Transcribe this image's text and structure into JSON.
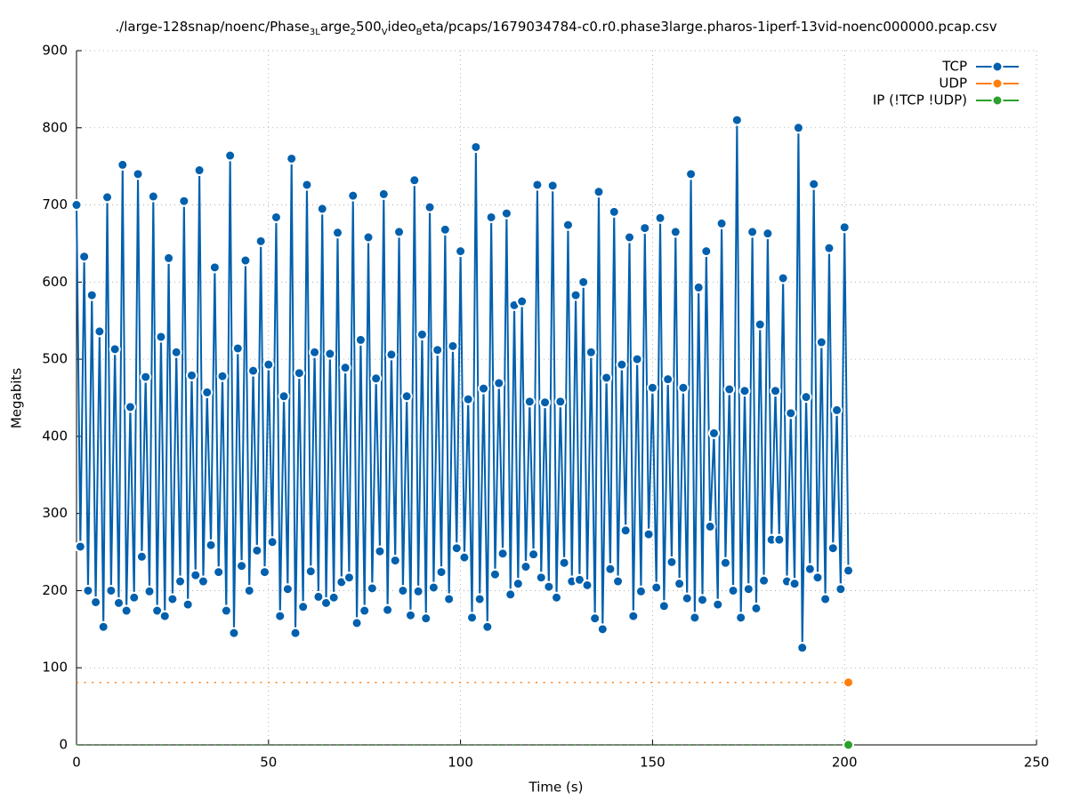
{
  "chart_data": {
    "type": "line",
    "title": [
      {
        "text": "./large-128snap/noenc/Phase"
      },
      {
        "text": "3L",
        "sub": true
      },
      {
        "text": "arge"
      },
      {
        "text": "2",
        "sub": true
      },
      {
        "text": "500"
      },
      {
        "text": "V",
        "sub": true
      },
      {
        "text": "ideo"
      },
      {
        "text": "B",
        "sub": true
      },
      {
        "text": "eta/pcaps/1679034784-c0.r0.phase3large.pharos-1iperf-13vid-noenc000000.pcap.csv"
      }
    ],
    "xlabel": "Time (s)",
    "ylabel": "Megabits",
    "xlim": [
      0,
      250
    ],
    "ylim": [
      0,
      900
    ],
    "xticks": [
      0,
      50,
      100,
      150,
      200,
      250
    ],
    "yticks": [
      0,
      100,
      200,
      300,
      400,
      500,
      600,
      700,
      800,
      900
    ],
    "grid": true,
    "legend": "top-right",
    "x": [
      0,
      1,
      2,
      3,
      4,
      5,
      6,
      7,
      8,
      9,
      10,
      11,
      12,
      13,
      14,
      15,
      16,
      17,
      18,
      19,
      20,
      21,
      22,
      23,
      24,
      25,
      26,
      27,
      28,
      29,
      30,
      31,
      32,
      33,
      34,
      35,
      36,
      37,
      38,
      39,
      40,
      41,
      42,
      43,
      44,
      45,
      46,
      47,
      48,
      49,
      50,
      51,
      52,
      53,
      54,
      55,
      56,
      57,
      58,
      59,
      60,
      61,
      62,
      63,
      64,
      65,
      66,
      67,
      68,
      69,
      70,
      71,
      72,
      73,
      74,
      75,
      76,
      77,
      78,
      79,
      80,
      81,
      82,
      83,
      84,
      85,
      86,
      87,
      88,
      89,
      90,
      91,
      92,
      93,
      94,
      95,
      96,
      97,
      98,
      99,
      100,
      101,
      102,
      103,
      104,
      105,
      106,
      107,
      108,
      109,
      110,
      111,
      112,
      113,
      114,
      115,
      116,
      117,
      118,
      119,
      120,
      121,
      122,
      123,
      124,
      125,
      126,
      127,
      128,
      129,
      130,
      131,
      132,
      133,
      134,
      135,
      136,
      137,
      138,
      139,
      140,
      141,
      142,
      143,
      144,
      145,
      146,
      147,
      148,
      149,
      150,
      151,
      152,
      153,
      154,
      155,
      156,
      157,
      158,
      159,
      160,
      161,
      162,
      163,
      164,
      165,
      166,
      167,
      168,
      169,
      170,
      171,
      172,
      173,
      174,
      175,
      176,
      177,
      178,
      179,
      180,
      181,
      182,
      183,
      184,
      185,
      186,
      187,
      188,
      189,
      190,
      191,
      192,
      193,
      194,
      195,
      196,
      197,
      198,
      199,
      200,
      201
    ],
    "series": [
      {
        "name": "TCP",
        "color": "#0060ad",
        "markers": "all",
        "values": [
          700,
          257,
          633,
          200,
          583,
          185,
          536,
          153,
          710,
          200,
          513,
          184,
          752,
          174,
          438,
          191,
          740,
          244,
          477,
          199,
          711,
          174,
          529,
          167,
          631,
          189,
          509,
          212,
          705,
          182,
          479,
          220,
          745,
          212,
          457,
          259,
          619,
          224,
          478,
          174,
          764,
          145,
          514,
          232,
          628,
          200,
          485,
          252,
          653,
          224,
          493,
          263,
          684,
          167,
          452,
          202,
          760,
          145,
          482,
          179,
          726,
          225,
          509,
          192,
          695,
          184,
          507,
          191,
          664,
          211,
          489,
          217,
          712,
          158,
          525,
          174,
          658,
          203,
          475,
          251,
          714,
          175,
          506,
          239,
          665,
          200,
          452,
          168,
          732,
          199,
          532,
          164,
          697,
          204,
          512,
          224,
          668,
          189,
          517,
          255,
          640,
          243,
          448,
          165,
          775,
          189,
          462,
          153,
          684,
          221,
          469,
          248,
          689,
          195,
          570,
          209,
          575,
          231,
          445,
          247,
          726,
          217,
          444,
          205,
          725,
          191,
          445,
          236,
          674,
          212,
          583,
          214,
          600,
          207,
          509,
          164,
          717,
          150,
          476,
          228,
          691,
          212,
          493,
          278,
          658,
          167,
          500,
          199,
          670,
          273,
          463,
          204,
          683,
          180,
          474,
          237,
          665,
          209,
          463,
          190,
          740,
          165,
          593,
          188,
          640,
          283,
          404,
          182,
          676,
          236,
          461,
          200,
          810,
          165,
          459,
          202,
          665,
          177,
          545,
          213,
          663,
          266,
          459,
          266,
          605,
          212,
          430,
          209,
          800,
          126,
          451,
          228,
          727,
          217,
          522,
          189,
          644,
          255,
          434,
          202,
          671,
          226
        ]
      },
      {
        "name": "UDP",
        "color": "#ff7f0e",
        "markers": "last",
        "values": [
          81,
          81,
          81,
          81,
          81,
          81,
          81,
          81,
          81,
          81,
          81,
          81,
          81,
          81,
          81,
          81,
          81,
          81,
          81,
          81,
          81,
          81,
          81,
          81,
          81,
          81,
          81,
          81,
          81,
          81,
          81,
          81,
          81,
          81,
          81,
          81,
          81,
          81,
          81,
          81,
          81,
          81,
          81,
          81,
          81,
          81,
          81,
          81,
          81,
          81,
          81,
          81,
          81,
          81,
          81,
          81,
          81,
          81,
          81,
          81,
          81,
          81,
          81,
          81,
          81,
          81,
          81,
          81,
          81,
          81,
          81,
          81,
          81,
          81,
          81,
          81,
          81,
          81,
          81,
          81,
          81,
          81,
          81,
          81,
          81,
          81,
          81,
          81,
          81,
          81,
          81,
          81,
          81,
          81,
          81,
          81,
          81,
          81,
          81,
          81,
          81,
          81,
          81,
          81,
          81,
          81,
          81,
          81,
          81,
          81,
          81,
          81,
          81,
          81,
          81,
          81,
          81,
          81,
          81,
          81,
          81,
          81,
          81,
          81,
          81,
          81,
          81,
          81,
          81,
          81,
          81,
          81,
          81,
          81,
          81,
          81,
          81,
          81,
          81,
          81,
          81,
          81,
          81,
          81,
          81,
          81,
          81,
          81,
          81,
          81,
          81,
          81,
          81,
          81,
          81,
          81,
          81,
          81,
          81,
          81,
          81,
          81,
          81,
          81,
          81,
          81,
          81,
          81,
          81,
          81,
          81,
          81,
          81,
          81,
          81,
          81,
          81,
          81,
          81,
          81,
          81,
          81,
          81,
          81,
          81,
          81,
          81,
          81,
          81,
          81,
          81,
          81,
          81,
          81,
          81,
          81,
          81,
          81,
          81,
          81,
          81,
          81
        ]
      },
      {
        "name": "IP (!TCP  !UDP)",
        "color": "#2ca02c",
        "markers": "last",
        "values": [
          0,
          0,
          0,
          0,
          0,
          0,
          0,
          0,
          0,
          0,
          0,
          0,
          0,
          0,
          0,
          0,
          0,
          0,
          0,
          0,
          0,
          0,
          0,
          0,
          0,
          0,
          0,
          0,
          0,
          0,
          0,
          0,
          0,
          0,
          0,
          0,
          0,
          0,
          0,
          0,
          0,
          0,
          0,
          0,
          0,
          0,
          0,
          0,
          0,
          0,
          0,
          0,
          0,
          0,
          0,
          0,
          0,
          0,
          0,
          0,
          0,
          0,
          0,
          0,
          0,
          0,
          0,
          0,
          0,
          0,
          0,
          0,
          0,
          0,
          0,
          0,
          0,
          0,
          0,
          0,
          0,
          0,
          0,
          0,
          0,
          0,
          0,
          0,
          0,
          0,
          0,
          0,
          0,
          0,
          0,
          0,
          0,
          0,
          0,
          0,
          0,
          0,
          0,
          0,
          0,
          0,
          0,
          0,
          0,
          0,
          0,
          0,
          0,
          0,
          0,
          0,
          0,
          0,
          0,
          0,
          0,
          0,
          0,
          0,
          0,
          0,
          0,
          0,
          0,
          0,
          0,
          0,
          0,
          0,
          0,
          0,
          0,
          0,
          0,
          0,
          0,
          0,
          0,
          0,
          0,
          0,
          0,
          0,
          0,
          0,
          0,
          0,
          0,
          0,
          0,
          0,
          0,
          0,
          0,
          0,
          0,
          0,
          0,
          0,
          0,
          0,
          0,
          0,
          0,
          0,
          0,
          0,
          0,
          0,
          0,
          0,
          0,
          0,
          0,
          0,
          0,
          0,
          0,
          0,
          0,
          0,
          0,
          0,
          0,
          0,
          0,
          0,
          0,
          0,
          0,
          0,
          0,
          0,
          0,
          0,
          0,
          0
        ]
      }
    ]
  }
}
